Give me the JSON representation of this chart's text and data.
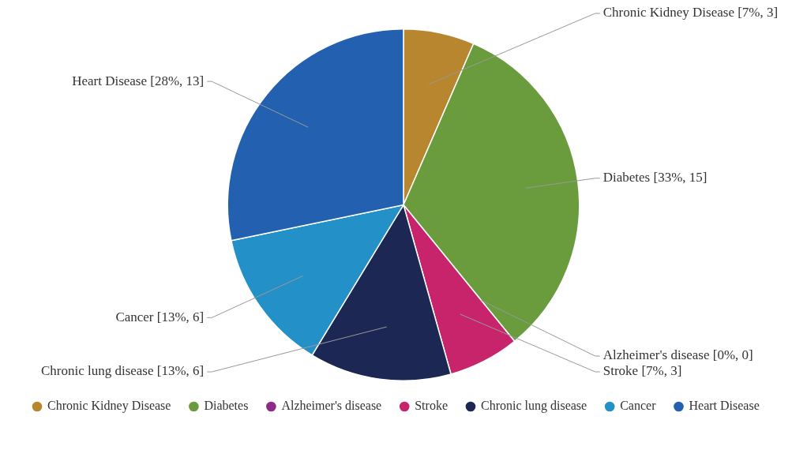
{
  "chart_data": {
    "type": "pie",
    "categories": [
      "Chronic Kidney Disease",
      "Diabetes",
      "Alzheimer's disease",
      "Stroke",
      "Chronic lung disease",
      "Cancer",
      "Heart Disease"
    ],
    "values": [
      3,
      15,
      0,
      3,
      6,
      6,
      13
    ],
    "value_labels": [
      "[7%, 3]",
      "[33%, 15]",
      "[0%, 0]",
      "[7%, 3]",
      "[13%, 6]",
      "[13%, 6]",
      "[28%, 13]"
    ],
    "colors": [
      "#b8862e",
      "#6a9c3e",
      "#8e2a8a",
      "#c8246c",
      "#1c2754",
      "#2490c8",
      "#2460b0"
    ],
    "legend": "bottom"
  }
}
